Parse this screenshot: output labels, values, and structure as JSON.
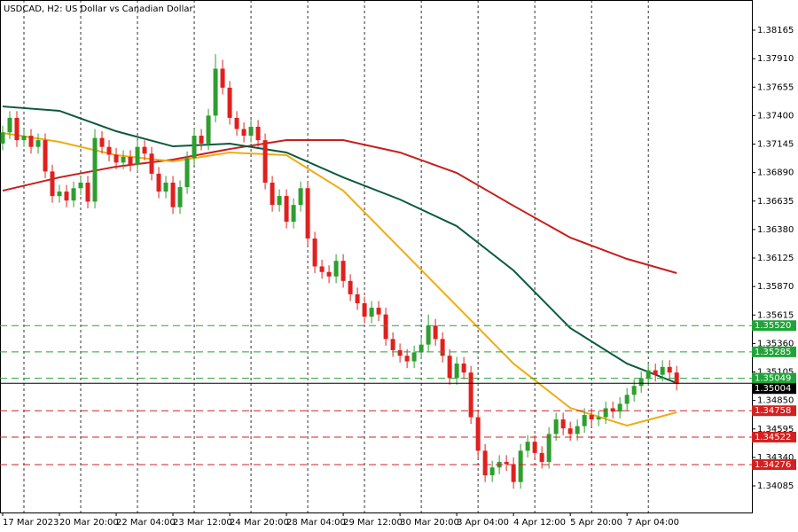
{
  "chart_data": {
    "type": "candlestick",
    "title": "USDCAD, H2:  US Dollar vs Canadian Dollar",
    "open": [
      1.3715,
      1.3725,
      1.3738,
      1.3718,
      1.3722,
      1.3712,
      1.3718,
      1.369,
      1.3668,
      1.3672,
      1.3664,
      1.3675,
      1.368,
      1.3663,
      1.372,
      1.3712,
      1.3705,
      1.3698,
      1.3703,
      1.3696,
      1.3712,
      1.3706,
      1.3688,
      1.3672,
      1.368,
      1.3658,
      1.3676,
      1.3702,
      1.3722,
      1.3715,
      1.374,
      1.3782,
      1.3765,
      1.3738,
      1.3728,
      1.3722,
      1.373,
      1.3718,
      1.368,
      1.366,
      1.3668,
      1.3645,
      1.366,
      1.3675,
      1.363,
      1.3605,
      1.36,
      1.3596,
      1.361,
      1.3592,
      1.358,
      1.3572,
      1.356,
      1.3568,
      1.3562,
      1.354,
      1.353,
      1.3525,
      1.352,
      1.3528,
      1.3535,
      1.3552,
      1.354,
      1.3525,
      1.3505,
      1.3518,
      1.351,
      1.347,
      1.344,
      1.3418,
      1.3425,
      1.343,
      1.3428,
      1.3412,
      1.344,
      1.3448,
      1.3438,
      1.343,
      1.3455,
      1.3468,
      1.346,
      1.3455,
      1.3462,
      1.3472,
      1.3468,
      1.347,
      1.3478,
      1.3475,
      1.3482,
      1.349,
      1.3498,
      1.3505,
      1.3512,
      1.3508,
      1.3515,
      1.351
    ],
    "high": [
      1.3731,
      1.3744,
      1.3744,
      1.3728,
      1.3728,
      1.3724,
      1.3724,
      1.3696,
      1.3678,
      1.3678,
      1.3681,
      1.3686,
      1.3686,
      1.3728,
      1.3726,
      1.3718,
      1.3711,
      1.3709,
      1.3709,
      1.3718,
      1.3718,
      1.3712,
      1.3694,
      1.3686,
      1.3686,
      1.3682,
      1.3708,
      1.3728,
      1.3728,
      1.3746,
      1.3795,
      1.379,
      1.3771,
      1.3744,
      1.3734,
      1.3736,
      1.3736,
      1.3724,
      1.3686,
      1.3674,
      1.3674,
      1.3666,
      1.3681,
      1.3681,
      1.3636,
      1.3611,
      1.3606,
      1.3616,
      1.3616,
      1.3598,
      1.3586,
      1.3578,
      1.3574,
      1.3574,
      1.3568,
      1.3546,
      1.3536,
      1.3531,
      1.3534,
      1.3541,
      1.3562,
      1.3558,
      1.3546,
      1.3531,
      1.3524,
      1.3524,
      1.3516,
      1.3476,
      1.3446,
      1.3431,
      1.3436,
      1.3436,
      1.3434,
      1.3446,
      1.3454,
      1.3454,
      1.3444,
      1.3461,
      1.3474,
      1.3474,
      1.3466,
      1.3468,
      1.3478,
      1.3478,
      1.3476,
      1.3484,
      1.3484,
      1.3488,
      1.3496,
      1.3504,
      1.3511,
      1.3518,
      1.3518,
      1.3521,
      1.3521,
      1.3516
    ],
    "low": [
      1.3709,
      1.3719,
      1.3712,
      1.3712,
      1.3706,
      1.3706,
      1.3684,
      1.3662,
      1.3662,
      1.3658,
      1.3658,
      1.3669,
      1.3657,
      1.3657,
      1.3706,
      1.3699,
      1.3692,
      1.3692,
      1.369,
      1.369,
      1.37,
      1.3682,
      1.3666,
      1.3666,
      1.3652,
      1.3652,
      1.367,
      1.3696,
      1.3709,
      1.3709,
      1.3734,
      1.3759,
      1.3732,
      1.3722,
      1.3716,
      1.3716,
      1.3712,
      1.3674,
      1.3654,
      1.3654,
      1.3639,
      1.3639,
      1.3654,
      1.3624,
      1.3599,
      1.3594,
      1.359,
      1.359,
      1.3586,
      1.3574,
      1.3566,
      1.3554,
      1.3554,
      1.3556,
      1.3534,
      1.3524,
      1.3519,
      1.3514,
      1.3514,
      1.3522,
      1.3529,
      1.3534,
      1.3519,
      1.3499,
      1.3499,
      1.3504,
      1.3464,
      1.3434,
      1.3412,
      1.3412,
      1.3419,
      1.3422,
      1.3406,
      1.3406,
      1.3434,
      1.3432,
      1.3424,
      1.3424,
      1.3449,
      1.3454,
      1.3449,
      1.3449,
      1.3456,
      1.3462,
      1.3462,
      1.3464,
      1.3469,
      1.3469,
      1.3476,
      1.3484,
      1.3492,
      1.3499,
      1.3502,
      1.3502,
      1.3504,
      1.3494
    ],
    "close": [
      1.3725,
      1.3738,
      1.3718,
      1.3722,
      1.3712,
      1.3718,
      1.369,
      1.3668,
      1.3672,
      1.3664,
      1.3675,
      1.368,
      1.3663,
      1.372,
      1.3712,
      1.3705,
      1.3698,
      1.3703,
      1.3696,
      1.3712,
      1.3706,
      1.3688,
      1.3672,
      1.368,
      1.3658,
      1.3676,
      1.3702,
      1.3722,
      1.3715,
      1.374,
      1.3782,
      1.3765,
      1.3738,
      1.3728,
      1.3722,
      1.373,
      1.3718,
      1.368,
      1.366,
      1.3668,
      1.3645,
      1.366,
      1.3675,
      1.363,
      1.3605,
      1.36,
      1.3596,
      1.361,
      1.3592,
      1.358,
      1.3572,
      1.356,
      1.3568,
      1.3562,
      1.354,
      1.353,
      1.3525,
      1.352,
      1.3528,
      1.3535,
      1.3552,
      1.354,
      1.3525,
      1.3505,
      1.3518,
      1.351,
      1.347,
      1.344,
      1.3418,
      1.3425,
      1.343,
      1.3428,
      1.3412,
      1.344,
      1.3448,
      1.3438,
      1.343,
      1.3455,
      1.3468,
      1.346,
      1.3455,
      1.3462,
      1.3472,
      1.3468,
      1.347,
      1.3478,
      1.3475,
      1.3482,
      1.349,
      1.3498,
      1.3505,
      1.3512,
      1.3508,
      1.3515,
      1.351,
      1.35
    ],
    "up_color": "#2e9e2e",
    "down_color": "#e0201e",
    "moving_averages": [
      {
        "color": "#c81e1e",
        "x": [
          0,
          8,
          16,
          24,
          32,
          40,
          48,
          56,
          64,
          72,
          80,
          88,
          95
        ],
        "values": [
          1.36728,
          1.36847,
          1.36943,
          1.37006,
          1.37101,
          1.37181,
          1.37181,
          1.3707,
          1.36887,
          1.36593,
          1.36308,
          1.36117,
          1.3599
        ]
      },
      {
        "color": "#0b5a3c",
        "x": [
          0,
          8,
          16,
          24,
          32,
          40,
          48,
          56,
          64,
          72,
          80,
          88,
          95
        ],
        "values": [
          1.37482,
          1.37443,
          1.3726,
          1.37125,
          1.37149,
          1.3707,
          1.36847,
          1.36649,
          1.36411,
          1.36014,
          1.35498,
          1.3518,
          1.35006
        ]
      },
      {
        "color": "#f0ac14",
        "x": [
          0,
          8,
          16,
          24,
          32,
          40,
          48,
          56,
          64,
          72,
          80,
          88,
          95
        ],
        "values": [
          1.37244,
          1.37165,
          1.37046,
          1.3699,
          1.3707,
          1.37046,
          1.36728,
          1.36212,
          1.35696,
          1.3518,
          1.34783,
          1.34625,
          1.34744
        ]
      }
    ],
    "levels": [
      {
        "value": 1.3552,
        "label": "1.35520",
        "color": "#22a33a"
      },
      {
        "value": 1.35285,
        "label": "1.35285",
        "color": "#22a33a"
      },
      {
        "value": 1.35049,
        "label": "1.35049",
        "color": "#22a33a"
      },
      {
        "value": 1.34758,
        "label": "1.34758",
        "color": "#d42020"
      },
      {
        "value": 1.34522,
        "label": "1.34522",
        "color": "#d42020"
      },
      {
        "value": 1.34276,
        "label": "1.34276",
        "color": "#d42020"
      }
    ],
    "price_line": {
      "value": 1.35004,
      "label": "1.35004",
      "color": "#000000"
    },
    "xlim": [
      0,
      105.6
    ],
    "xticks": [
      {
        "value": 0,
        "label": "17 Mar 2023"
      },
      {
        "value": 8,
        "label": "20 Mar 20:00"
      },
      {
        "value": 16,
        "label": "22 Mar 04:00"
      },
      {
        "value": 24,
        "label": "23 Mar 12:00"
      },
      {
        "value": 32,
        "label": "24 Mar 20:00"
      },
      {
        "value": 40,
        "label": "28 Mar 04:00"
      },
      {
        "value": 48,
        "label": "29 Mar 12:00"
      },
      {
        "value": 56,
        "label": "30 Mar 20:00"
      },
      {
        "value": 64,
        "label": "3 Apr 04:00"
      },
      {
        "value": 72,
        "label": "4 Apr 12:00"
      },
      {
        "value": 80,
        "label": "5 Apr 20:00"
      },
      {
        "value": 88,
        "label": "7 Apr 04:00"
      }
    ],
    "ylim": [
      1.33847,
      1.38435
    ],
    "yticks": [
      1.38165,
      {
        "value": 1.3791,
        "label": "1.37910"
      },
      1.37655,
      {
        "value": 1.374,
        "label": "1.37400"
      },
      1.37145,
      {
        "value": 1.3689,
        "label": "1.36890"
      },
      1.36635,
      {
        "value": 1.3638,
        "label": "1.36380"
      },
      1.36125,
      {
        "value": 1.3587,
        "label": "1.35870"
      },
      1.35615,
      {
        "value": 1.3536,
        "label": "1.35360"
      },
      1.35105,
      {
        "value": 1.3485,
        "label": "1.34850"
      },
      1.34595,
      {
        "value": 1.3434,
        "label": "1.34340"
      },
      1.34085
    ],
    "grid": true
  }
}
